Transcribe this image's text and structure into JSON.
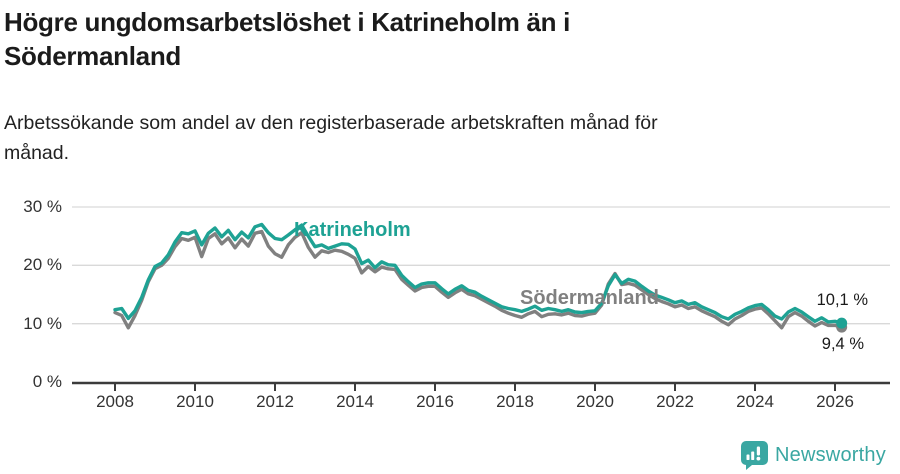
{
  "header": {
    "title": "Högre ungdomsarbetslöshet i Katrineholm än i\nSödermanland",
    "subtitle": "Arbetssökande som andel av den registerbaserade arbetskraften månad för\nmånad."
  },
  "footer": {
    "brand": "Newsworthy",
    "logo_icon": "speech-bubble-bar-chart-exclamation"
  },
  "colors": {
    "katrineholm": "#1ea294",
    "sodermanland": "#808080",
    "axis": "#3b3b3b",
    "grid": "#d9d9d9",
    "tick_text": "#333333",
    "annotation_text": "#1a1a1a",
    "brand_teal": "#3aa7a2"
  },
  "chart_data": {
    "type": "line",
    "title": "Högre ungdomsarbetslöshet i Katrineholm än i Södermanland",
    "subtitle": "Arbetssökande som andel av den registerbaserade arbetskraften månad för månad.",
    "unit": "%",
    "grid": "horizontal",
    "legend_position": "inline-labels",
    "x_start_year": 2008.0,
    "x_step_years": 0.166667,
    "ylim": [
      0,
      30
    ],
    "y_ticks": [
      {
        "v": 30,
        "label": "30 %"
      },
      {
        "v": 20,
        "label": "20 %"
      },
      {
        "v": 10,
        "label": "10 %"
      },
      {
        "v": 0,
        "label": "0 %"
      }
    ],
    "x_ticks": [
      {
        "v": 2008,
        "label": "2008"
      },
      {
        "v": 2010,
        "label": "2010"
      },
      {
        "v": 2012,
        "label": "2012"
      },
      {
        "v": 2014,
        "label": "2014"
      },
      {
        "v": 2016,
        "label": "2016"
      },
      {
        "v": 2018,
        "label": "2018"
      },
      {
        "v": 2020,
        "label": "2020"
      },
      {
        "v": 2022,
        "label": "2022"
      },
      {
        "v": 2024,
        "label": "2024"
      },
      {
        "v": 2026,
        "label": "2026"
      }
    ],
    "series": [
      {
        "name": "Södermanland",
        "color": "#808080",
        "end_label": "9,4 %",
        "end_value": 9.4,
        "values": [
          11.9,
          11.4,
          9.3,
          11.4,
          14.0,
          17.2,
          19.4,
          20.0,
          21.2,
          23.2,
          24.6,
          24.3,
          24.8,
          21.5,
          24.6,
          25.4,
          23.7,
          24.7,
          23.0,
          24.5,
          23.3,
          25.5,
          25.8,
          23.3,
          22.0,
          21.4,
          23.5,
          24.8,
          25.6,
          23.1,
          21.4,
          22.5,
          22.2,
          22.6,
          22.4,
          21.9,
          21.2,
          18.7,
          19.8,
          18.9,
          19.7,
          19.4,
          19.3,
          17.6,
          16.6,
          15.6,
          16.2,
          16.4,
          16.4,
          15.4,
          14.5,
          15.3,
          15.9,
          15.1,
          14.8,
          14.2,
          13.6,
          13.0,
          12.3,
          11.8,
          11.4,
          11.1,
          11.7,
          12.1,
          11.2,
          11.6,
          11.7,
          11.5,
          11.8,
          11.4,
          11.3,
          11.6,
          11.8,
          13.2,
          16.8,
          18.6,
          16.7,
          16.9,
          16.6,
          15.8,
          15.0,
          14.3,
          13.8,
          13.4,
          12.9,
          13.2,
          12.6,
          12.9,
          12.2,
          11.7,
          11.2,
          10.4,
          9.8,
          10.8,
          11.4,
          12.1,
          12.5,
          12.7,
          11.7,
          10.5,
          9.3,
          11.2,
          11.9,
          11.3,
          10.4,
          9.6,
          10.2,
          9.7,
          9.7,
          9.4
        ]
      },
      {
        "name": "Katrineholm",
        "color": "#1ea294",
        "end_label": "10,1 %",
        "end_value": 10.1,
        "values": [
          12.4,
          12.6,
          10.9,
          12.2,
          14.5,
          17.5,
          19.8,
          20.4,
          21.8,
          24.0,
          25.6,
          25.4,
          25.9,
          23.5,
          25.5,
          26.4,
          24.9,
          26.0,
          24.4,
          25.7,
          24.7,
          26.6,
          27.0,
          25.6,
          24.6,
          24.4,
          25.2,
          26.1,
          26.9,
          25.0,
          23.2,
          23.5,
          22.9,
          23.3,
          23.7,
          23.6,
          22.8,
          20.3,
          20.9,
          19.6,
          20.6,
          20.1,
          20.0,
          18.3,
          17.2,
          16.2,
          16.8,
          17.0,
          17.0,
          16.0,
          15.1,
          15.9,
          16.5,
          15.7,
          15.4,
          14.7,
          14.1,
          13.5,
          12.9,
          12.6,
          12.4,
          12.1,
          12.5,
          13.0,
          12.3,
          12.6,
          12.4,
          12.1,
          12.4,
          12.0,
          11.9,
          12.1,
          12.2,
          13.5,
          16.5,
          18.4,
          16.9,
          17.6,
          17.3,
          16.4,
          15.6,
          14.9,
          14.5,
          14.1,
          13.6,
          13.9,
          13.3,
          13.6,
          12.9,
          12.4,
          11.9,
          11.2,
          10.8,
          11.6,
          12.1,
          12.7,
          13.1,
          13.3,
          12.4,
          11.3,
          10.8,
          12.0,
          12.6,
          12.0,
          11.2,
          10.4,
          11.0,
          10.3,
          10.4,
          10.1
        ]
      }
    ]
  }
}
